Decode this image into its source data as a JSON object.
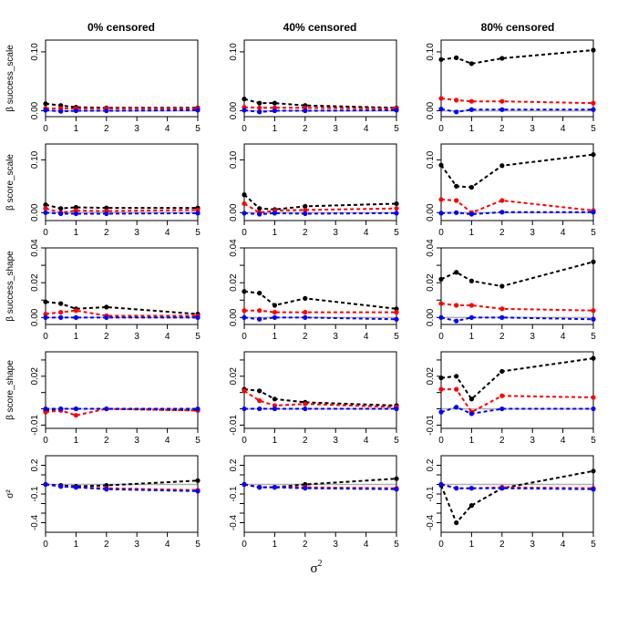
{
  "figure": {
    "column_titles": [
      "0% censored",
      "40% censored",
      "80% censored"
    ],
    "xlabel": "σ",
    "xlabel_sup": "2"
  },
  "colors": {
    "black": "#000000",
    "red": "#ff0000",
    "blue": "#0000ff",
    "reference": "#b0b0b0"
  },
  "chart_data": {
    "type": "line",
    "layout": "grid 5 rows x 3 columns",
    "x": [
      0,
      0.5,
      1,
      2,
      5
    ],
    "x_ticks": [
      0,
      1,
      2,
      3,
      4,
      5
    ],
    "xlim": [
      0,
      5
    ],
    "rows": [
      {
        "ylabel": "β success_scale",
        "ylim": [
          -0.01,
          0.12
        ],
        "y_ticks": [
          0.0,
          0.1
        ],
        "y_tick_labels": [
          "0.00",
          "0.10"
        ],
        "panels": [
          {
            "series": [
              {
                "name": "black",
                "values": [
                  0.012,
                  0.009,
                  0.006,
                  0.005,
                  0.005
                ]
              },
              {
                "name": "red",
                "values": [
                  0.004,
                  0.004,
                  0.004,
                  0.004,
                  0.004
                ]
              },
              {
                "name": "blue",
                "values": [
                  0.001,
                  -0.001,
                  0.0,
                  0.0,
                  0.001
                ]
              }
            ]
          },
          {
            "series": [
              {
                "name": "black",
                "values": [
                  0.02,
                  0.013,
                  0.013,
                  0.009,
                  0.005
                ]
              },
              {
                "name": "red",
                "values": [
                  0.006,
                  0.005,
                  0.005,
                  0.005,
                  0.004
                ]
              },
              {
                "name": "blue",
                "values": [
                  0.001,
                  -0.002,
                  0.0,
                  0.0,
                  0.001
                ]
              }
            ]
          },
          {
            "series": [
              {
                "name": "black",
                "values": [
                  0.087,
                  0.09,
                  0.08,
                  0.089,
                  0.103
                ]
              },
              {
                "name": "red",
                "values": [
                  0.021,
                  0.018,
                  0.016,
                  0.016,
                  0.013
                ]
              },
              {
                "name": "blue",
                "values": [
                  0.003,
                  -0.002,
                  0.002,
                  0.002,
                  0.002
                ]
              }
            ]
          }
        ]
      },
      {
        "ylabel": "β score_scale",
        "ylim": [
          -0.015,
          0.13
        ],
        "y_ticks": [
          0.0,
          0.1
        ],
        "y_tick_labels": [
          "0.00",
          "0.10"
        ],
        "panels": [
          {
            "series": [
              {
                "name": "black",
                "values": [
                  0.015,
                  0.008,
                  0.01,
                  0.009,
                  0.009
                ]
              },
              {
                "name": "red",
                "values": [
                  0.008,
                  0.0,
                  0.004,
                  0.003,
                  0.005
                ]
              },
              {
                "name": "blue",
                "values": [
                  0.0,
                  -0.002,
                  -0.002,
                  -0.002,
                  -0.001
                ]
              }
            ]
          },
          {
            "series": [
              {
                "name": "black",
                "values": [
                  0.034,
                  0.008,
                  0.006,
                  0.012,
                  0.017
                ]
              },
              {
                "name": "red",
                "values": [
                  0.017,
                  0.0,
                  0.004,
                  0.005,
                  0.008
                ]
              },
              {
                "name": "blue",
                "values": [
                  -0.001,
                  -0.003,
                  -0.001,
                  -0.002,
                  -0.001
                ]
              }
            ]
          },
          {
            "series": [
              {
                "name": "black",
                "values": [
                  0.09,
                  0.05,
                  0.048,
                  0.089,
                  0.11
                ]
              },
              {
                "name": "red",
                "values": [
                  0.025,
                  0.023,
                  0.0,
                  0.023,
                  0.004
                ]
              },
              {
                "name": "blue",
                "values": [
                  -0.001,
                  0.0,
                  -0.003,
                  0.001,
                  0.001
                ]
              }
            ]
          }
        ]
      },
      {
        "ylabel": "β success_shape",
        "ylim": [
          -0.004,
          0.04
        ],
        "y_ticks": [
          0.0,
          0.01,
          0.02,
          0.03,
          0.04
        ],
        "y_tick_labels": [
          "0.00",
          "",
          "0.02",
          "",
          "0.04"
        ],
        "panels": [
          {
            "series": [
              {
                "name": "black",
                "values": [
                  0.009,
                  0.008,
                  0.005,
                  0.006,
                  0.002
                ]
              },
              {
                "name": "red",
                "values": [
                  0.002,
                  0.003,
                  0.004,
                  0.001,
                  0.001
                ]
              },
              {
                "name": "blue",
                "values": [
                  0.0,
                  0.0,
                  0.0,
                  0.0,
                  0.0
                ]
              }
            ]
          },
          {
            "series": [
              {
                "name": "black",
                "values": [
                  0.015,
                  0.014,
                  0.007,
                  0.011,
                  0.005
                ]
              },
              {
                "name": "red",
                "values": [
                  0.004,
                  0.004,
                  0.003,
                  0.003,
                  0.003
                ]
              },
              {
                "name": "blue",
                "values": [
                  0.0,
                  -0.001,
                  0.0,
                  0.0,
                  -0.001
                ]
              }
            ]
          },
          {
            "series": [
              {
                "name": "black",
                "values": [
                  0.022,
                  0.026,
                  0.021,
                  0.018,
                  0.032
                ]
              },
              {
                "name": "red",
                "values": [
                  0.008,
                  0.007,
                  0.007,
                  0.005,
                  0.004
                ]
              },
              {
                "name": "blue",
                "values": [
                  0.0,
                  -0.002,
                  0.0,
                  0.0,
                  -0.001
                ]
              }
            ]
          }
        ]
      },
      {
        "ylabel": "β score_shape",
        "ylim": [
          -0.012,
          0.035
        ],
        "y_ticks": [
          -0.01,
          0.0,
          0.01,
          0.02,
          0.03
        ],
        "y_tick_labels": [
          "-0.01",
          "",
          "",
          "0.02",
          ""
        ],
        "panels": [
          {
            "series": [
              {
                "name": "black",
                "values": [
                  -0.001,
                  0.0,
                  0.0,
                  0.0,
                  -0.001
                ]
              },
              {
                "name": "red",
                "values": [
                  -0.002,
                  -0.001,
                  -0.004,
                  0.0,
                  -0.001
                ]
              },
              {
                "name": "blue",
                "values": [
                  0.0,
                  0.0,
                  0.0,
                  0.0,
                  0.0
                ]
              }
            ]
          },
          {
            "series": [
              {
                "name": "black",
                "values": [
                  0.012,
                  0.011,
                  0.006,
                  0.004,
                  0.002
                ]
              },
              {
                "name": "red",
                "values": [
                  0.011,
                  0.005,
                  0.002,
                  0.003,
                  0.001
                ]
              },
              {
                "name": "blue",
                "values": [
                  0.0,
                  0.0,
                  0.0,
                  0.0,
                  0.0
                ]
              }
            ]
          },
          {
            "series": [
              {
                "name": "black",
                "values": [
                  0.019,
                  0.02,
                  0.006,
                  0.023,
                  0.031
                ]
              },
              {
                "name": "red",
                "values": [
                  0.012,
                  0.012,
                  -0.002,
                  0.008,
                  0.007
                ]
              },
              {
                "name": "blue",
                "values": [
                  -0.002,
                  0.001,
                  -0.003,
                  0.0,
                  0.0
                ]
              }
            ]
          }
        ]
      },
      {
        "ylabel": "σ²",
        "ylim": [
          -0.5,
          0.3
        ],
        "y_ticks": [
          -0.4,
          -0.3,
          -0.2,
          -0.1,
          0.0,
          0.1,
          0.2
        ],
        "y_tick_labels": [
          "-0.4",
          "",
          "",
          "-0.1",
          "",
          "",
          "0.2"
        ],
        "panels": [
          {
            "series": [
              {
                "name": "black",
                "values": [
                  0.0,
                  -0.01,
                  -0.02,
                  -0.01,
                  0.04
                ]
              },
              {
                "name": "red",
                "values": [
                  0.0,
                  -0.02,
                  -0.03,
                  -0.04,
                  -0.06
                ]
              },
              {
                "name": "blue",
                "values": [
                  0.0,
                  -0.02,
                  -0.03,
                  -0.05,
                  -0.07
                ]
              }
            ]
          },
          {
            "series": [
              {
                "name": "black",
                "values": [
                  0.0,
                  -0.03,
                  -0.03,
                  0.0,
                  0.06
                ]
              },
              {
                "name": "red",
                "values": [
                  0.0,
                  -0.03,
                  -0.03,
                  -0.03,
                  -0.04
                ]
              },
              {
                "name": "blue",
                "values": [
                  0.0,
                  -0.03,
                  -0.03,
                  -0.04,
                  -0.05
                ]
              }
            ]
          },
          {
            "series": [
              {
                "name": "black",
                "values": [
                  -0.01,
                  -0.4,
                  -0.22,
                  -0.04,
                  0.14
                ]
              },
              {
                "name": "red",
                "values": [
                  0.0,
                  -0.04,
                  -0.04,
                  -0.03,
                  -0.04
                ]
              },
              {
                "name": "blue",
                "values": [
                  0.0,
                  -0.04,
                  -0.04,
                  -0.04,
                  -0.05
                ]
              }
            ]
          }
        ]
      }
    ]
  }
}
